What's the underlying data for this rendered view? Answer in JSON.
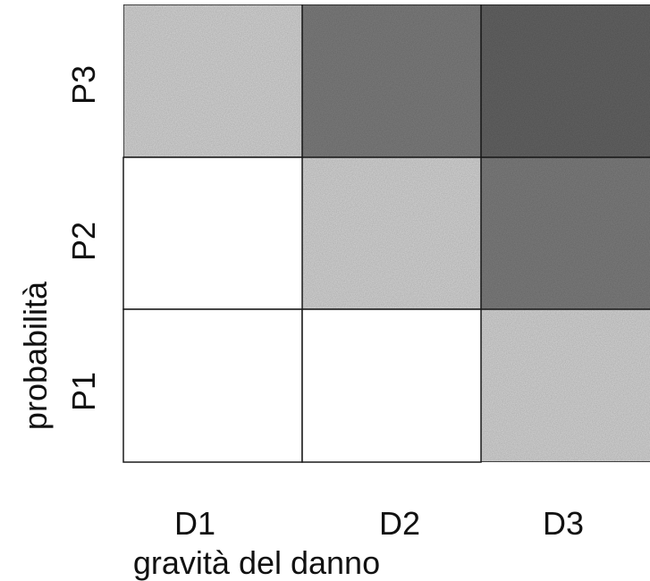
{
  "axes": {
    "y_title": "probabilità",
    "x_title": "gravità del danno",
    "rows": [
      "P3",
      "P2",
      "P1"
    ],
    "cols": [
      "D1",
      "D2",
      "D3"
    ]
  },
  "risk_levels": {
    "P3": [
      "light",
      "dark",
      "darkest"
    ],
    "P2": [
      "none",
      "light",
      "dark"
    ],
    "P1": [
      "none",
      "none",
      "light"
    ]
  },
  "colors": {
    "none": "#ffffff",
    "light": "#cfcfcf",
    "dark": "#7a7a7a",
    "darkest": "#626262",
    "grid_line": "#1a1a1a"
  }
}
